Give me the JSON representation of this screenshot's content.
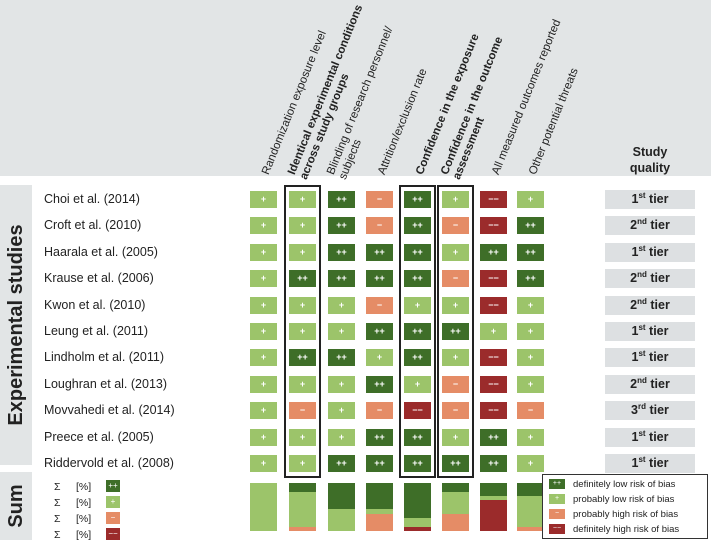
{
  "colors": {
    "dlow": "#3e6e28",
    "plow": "#9cc46a",
    "phigh": "#e58c66",
    "dhigh": "#9b2b2b",
    "band": "#e2e5e6"
  },
  "group_labels": {
    "experimental": "Experimental studies",
    "sum": "Sum"
  },
  "column_headers": [
    {
      "text": "Randomization exposure level",
      "bold": false
    },
    {
      "text": "Identical experimental conditions\nacross study groups",
      "bold": true
    },
    {
      "text": "Blinding of research personnel/\nsubjects",
      "bold": false
    },
    {
      "text": "Attrition/exclusion rate",
      "bold": false
    },
    {
      "text": "Confidence in the exposure",
      "bold": true
    },
    {
      "text": "Confidence in the outcome\nassessment",
      "bold": true
    },
    {
      "text": "All measured outcomes reported",
      "bold": false
    },
    {
      "text": "Other potential threats",
      "bold": false
    }
  ],
  "study_quality_header": "Study\nquality",
  "symbols": {
    "dlow": "++",
    "plow": "+",
    "phigh": "−",
    "dhigh": "−−"
  },
  "chart_data": {
    "type": "heatmap",
    "rating_scale": [
      "definitely low risk of bias",
      "probably low risk of bias",
      "probably high risk of bias",
      "definitely high risk of bias"
    ],
    "studies": [
      {
        "name": "Choi et al. (2014)",
        "ratings": [
          "plow",
          "plow",
          "dlow",
          "phigh",
          "dlow",
          "plow",
          "dhigh",
          "plow"
        ],
        "tier": "1",
        "tier_sup": "st",
        "tier_word": "tier"
      },
      {
        "name": "Croft et al. (2010)",
        "ratings": [
          "plow",
          "plow",
          "dlow",
          "phigh",
          "dlow",
          "phigh",
          "dhigh",
          "dlow"
        ],
        "tier": "2",
        "tier_sup": "nd",
        "tier_word": "tier"
      },
      {
        "name": "Haarala et al. (2005)",
        "ratings": [
          "plow",
          "plow",
          "dlow",
          "dlow",
          "dlow",
          "plow",
          "dlow",
          "dlow"
        ],
        "tier": "1",
        "tier_sup": "st",
        "tier_word": "tier"
      },
      {
        "name": "Krause et al. (2006)",
        "ratings": [
          "plow",
          "dlow",
          "dlow",
          "dlow",
          "dlow",
          "phigh",
          "dhigh",
          "dlow"
        ],
        "tier": "2",
        "tier_sup": "nd",
        "tier_word": "tier"
      },
      {
        "name": "Kwon et al. (2010)",
        "ratings": [
          "plow",
          "plow",
          "plow",
          "phigh",
          "plow",
          "plow",
          "dhigh",
          "plow"
        ],
        "tier": "2",
        "tier_sup": "nd",
        "tier_word": "tier"
      },
      {
        "name": "Leung et al. (2011)",
        "ratings": [
          "plow",
          "plow",
          "plow",
          "dlow",
          "dlow",
          "dlow",
          "plow",
          "plow"
        ],
        "tier": "1",
        "tier_sup": "st",
        "tier_word": "tier"
      },
      {
        "name": "Lindholm et al. (2011)",
        "ratings": [
          "plow",
          "dlow",
          "dlow",
          "plow",
          "dlow",
          "plow",
          "dhigh",
          "plow"
        ],
        "tier": "1",
        "tier_sup": "st",
        "tier_word": "tier"
      },
      {
        "name": "Loughran et al. (2013)",
        "ratings": [
          "plow",
          "plow",
          "plow",
          "dlow",
          "plow",
          "phigh",
          "dhigh",
          "plow"
        ],
        "tier": "2",
        "tier_sup": "nd",
        "tier_word": "tier"
      },
      {
        "name": "Movvahedi et al. (2014)",
        "ratings": [
          "plow",
          "phigh",
          "plow",
          "phigh",
          "dhigh",
          "phigh",
          "dhigh",
          "phigh"
        ],
        "tier": "3",
        "tier_sup": "rd",
        "tier_word": "tier"
      },
      {
        "name": "Preece et al. (2005)",
        "ratings": [
          "plow",
          "plow",
          "plow",
          "dlow",
          "dlow",
          "plow",
          "dlow",
          "plow"
        ],
        "tier": "1",
        "tier_sup": "st",
        "tier_word": "tier"
      },
      {
        "name": "Riddervold et al. (2008)",
        "ratings": [
          "plow",
          "plow",
          "dlow",
          "dlow",
          "dlow",
          "dlow",
          "dlow",
          "plow"
        ],
        "tier": "1",
        "tier_sup": "st",
        "tier_word": "tier"
      }
    ],
    "sum_rows": [
      {
        "sigma": "Σ",
        "pct": "[%]",
        "key": "dlow"
      },
      {
        "sigma": "Σ",
        "pct": "[%]",
        "key": "plow"
      },
      {
        "sigma": "Σ",
        "pct": "[%]",
        "key": "phigh"
      },
      {
        "sigma": "Σ",
        "pct": "[%]",
        "key": "dhigh"
      }
    ],
    "highlighted_columns": [
      1,
      4,
      5
    ]
  },
  "legend": [
    {
      "key": "dlow",
      "label": "definitely low risk of bias"
    },
    {
      "key": "plow",
      "label": "probably low risk of bias"
    },
    {
      "key": "phigh",
      "label": "probably high risk of bias"
    },
    {
      "key": "dhigh",
      "label": "definitely high risk of bias"
    }
  ]
}
